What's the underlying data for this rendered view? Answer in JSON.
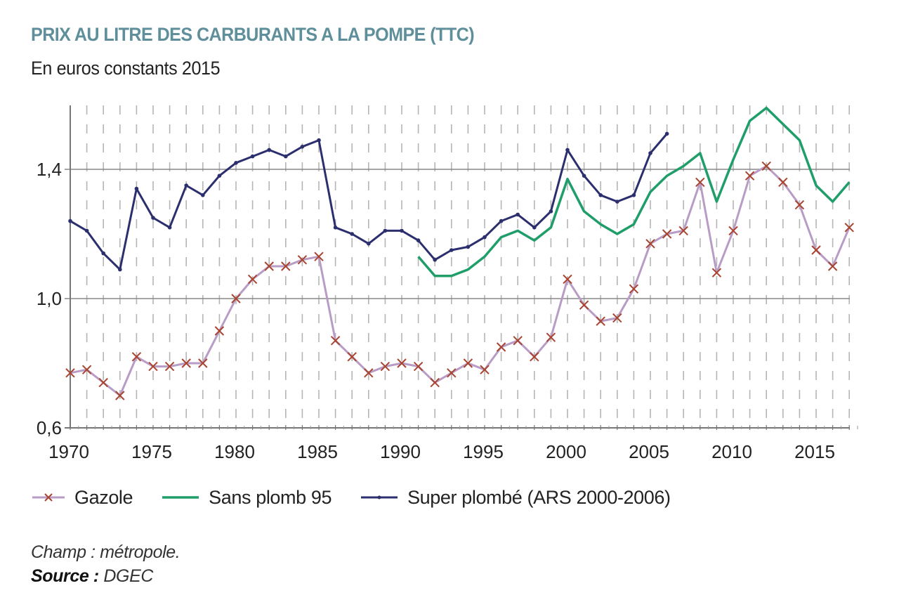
{
  "header": {
    "title": "PRIX AU LITRE DES CARBURANTS A LA POMPE (TTC)",
    "subtitle": "En euros constants 2015"
  },
  "footer": {
    "note": "Champ : métropole.",
    "source_label": "Source :",
    "source_value": "DGEC"
  },
  "colors": {
    "title": "#5e8f9b",
    "gazole_line": "#b89cc6",
    "gazole_marker": "#a8442f",
    "sp95": "#1f9e6a",
    "super": "#2c2f6e",
    "grid": "#888888"
  },
  "chart_data": {
    "type": "line",
    "title": "PRIX AU LITRE DES CARBURANTS A LA POMPE (TTC)",
    "subtitle": "En euros constants 2015",
    "xlabel": "",
    "ylabel": "",
    "xlim": [
      1970,
      2017
    ],
    "ylim": [
      0.6,
      1.6
    ],
    "y_ticks": [
      0.6,
      1.0,
      1.4
    ],
    "y_tick_labels": [
      "0,6",
      "1,0",
      "1,4"
    ],
    "x_ticks": [
      1970,
      1975,
      1980,
      1985,
      1990,
      1995,
      2000,
      2005,
      2010,
      2015
    ],
    "x_tick_labels": [
      "1970",
      "1975",
      "1980",
      "1985",
      "1990",
      "1995",
      "2000",
      "2005",
      "2010",
      "2015"
    ],
    "grid": "horizontal solid at labeled ticks, vertical dashed every year",
    "legend_position": "bottom",
    "series": [
      {
        "name": "Gazole",
        "marker": "x",
        "x": [
          1970,
          1971,
          1972,
          1973,
          1974,
          1975,
          1976,
          1977,
          1978,
          1979,
          1980,
          1981,
          1982,
          1983,
          1984,
          1985,
          1986,
          1987,
          1988,
          1989,
          1990,
          1991,
          1992,
          1993,
          1994,
          1995,
          1996,
          1997,
          1998,
          1999,
          2000,
          2001,
          2002,
          2003,
          2004,
          2005,
          2006,
          2007,
          2008,
          2009,
          2010,
          2011,
          2012,
          2013,
          2014,
          2015,
          2016,
          2017
        ],
        "values": [
          0.77,
          0.78,
          0.74,
          0.7,
          0.82,
          0.79,
          0.79,
          0.8,
          0.8,
          0.9,
          1.0,
          1.06,
          1.1,
          1.1,
          1.12,
          1.13,
          0.87,
          0.82,
          0.77,
          0.79,
          0.8,
          0.79,
          0.74,
          0.77,
          0.8,
          0.78,
          0.85,
          0.87,
          0.82,
          0.88,
          1.06,
          0.98,
          0.93,
          0.94,
          1.03,
          1.17,
          1.2,
          1.21,
          1.36,
          1.08,
          1.21,
          1.38,
          1.41,
          1.36,
          1.29,
          1.15,
          1.1,
          1.22
        ]
      },
      {
        "name": "Sans plomb 95",
        "marker": "none",
        "x": [
          1991,
          1992,
          1993,
          1994,
          1995,
          1996,
          1997,
          1998,
          1999,
          2000,
          2001,
          2002,
          2003,
          2004,
          2005,
          2006,
          2007,
          2008,
          2009,
          2010,
          2011,
          2012,
          2013,
          2014,
          2015,
          2016,
          2017
        ],
        "values": [
          1.13,
          1.07,
          1.07,
          1.09,
          1.13,
          1.19,
          1.21,
          1.18,
          1.22,
          1.37,
          1.27,
          1.23,
          1.2,
          1.23,
          1.33,
          1.38,
          1.41,
          1.45,
          1.3,
          1.43,
          1.55,
          1.59,
          1.54,
          1.49,
          1.35,
          1.3,
          1.36
        ]
      },
      {
        "name": "Super plombé (ARS 2000-2006)",
        "marker": "dot",
        "x": [
          1970,
          1971,
          1972,
          1973,
          1974,
          1975,
          1976,
          1977,
          1978,
          1979,
          1980,
          1981,
          1982,
          1983,
          1984,
          1985,
          1986,
          1987,
          1988,
          1989,
          1990,
          1991,
          1992,
          1993,
          1994,
          1995,
          1996,
          1997,
          1998,
          1999,
          2000,
          2001,
          2002,
          2003,
          2004,
          2005,
          2006
        ],
        "values": [
          1.24,
          1.21,
          1.14,
          1.09,
          1.34,
          1.25,
          1.22,
          1.35,
          1.32,
          1.38,
          1.42,
          1.44,
          1.46,
          1.44,
          1.47,
          1.49,
          1.22,
          1.2,
          1.17,
          1.21,
          1.21,
          1.18,
          1.12,
          1.15,
          1.16,
          1.19,
          1.24,
          1.26,
          1.22,
          1.27,
          1.46,
          1.38,
          1.32,
          1.3,
          1.32,
          1.45,
          1.51
        ]
      }
    ]
  }
}
